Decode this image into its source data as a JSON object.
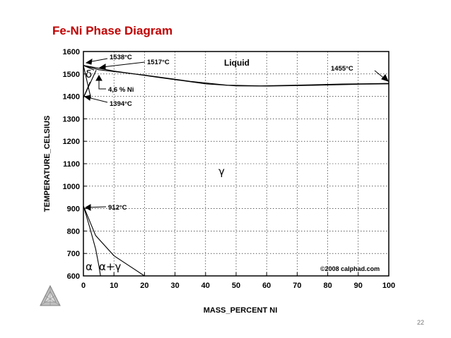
{
  "slide": {
    "title": "Fe-Ni Phase Diagram",
    "page_number": "22"
  },
  "chart_data": {
    "type": "line",
    "xlabel": "MASS_PERCENT NI",
    "ylabel": "TEMPERATURE_CELSIUS",
    "xlim": [
      0,
      100
    ],
    "ylim": [
      600,
      1600
    ],
    "x_ticks": [
      "0",
      "10",
      "20",
      "30",
      "40",
      "50",
      "60",
      "70",
      "80",
      "90",
      "100"
    ],
    "y_ticks": [
      "600",
      "700",
      "800",
      "900",
      "1000",
      "1100",
      "1200",
      "1300",
      "1400",
      "1500",
      "1600"
    ],
    "grid": true,
    "series": [
      {
        "x": [
          0,
          5,
          20,
          35,
          47,
          58,
          70,
          85,
          100
        ],
        "y": [
          1538,
          1519,
          1495,
          1467,
          1450,
          1447,
          1450,
          1455,
          1458
        ]
      },
      {
        "x": [
          0,
          10,
          25,
          40,
          50,
          60,
          75,
          90,
          100
        ],
        "y": [
          1538,
          1513,
          1484,
          1456,
          1447,
          1446,
          1449,
          1454,
          1456
        ]
      },
      {
        "x": [
          0,
          2.4
        ],
        "y": [
          1538,
          1394
        ]
      },
      {
        "x": [
          0,
          4.2
        ],
        "y": [
          1394,
          1517
        ]
      },
      {
        "x": [
          0,
          2.2
        ],
        "y": [
          1394,
          1464
        ]
      },
      {
        "x": [
          0,
          3.5
        ],
        "y": [
          1538,
          1517
        ]
      },
      {
        "x": [
          0,
          4,
          10,
          20
        ],
        "y": [
          912,
          780,
          690,
          600
        ]
      },
      {
        "x": [
          0,
          2,
          4,
          5,
          5.6
        ],
        "y": [
          912,
          820,
          720,
          650,
          600
        ]
      }
    ],
    "phase_labels": {
      "liquid": "Liquid",
      "delta": "δ",
      "gamma": "γ",
      "alpha": "α",
      "alpha_gamma": "α+γ"
    },
    "annotations": {
      "t_1538": "1538°C",
      "t_1517": "1517°C",
      "t_1455": "1455°C",
      "ni_4_6": "4,6 % Ni",
      "t_1394": "1394°C",
      "t_912": "912°C"
    },
    "copyright": "©2008 calphad.com"
  }
}
